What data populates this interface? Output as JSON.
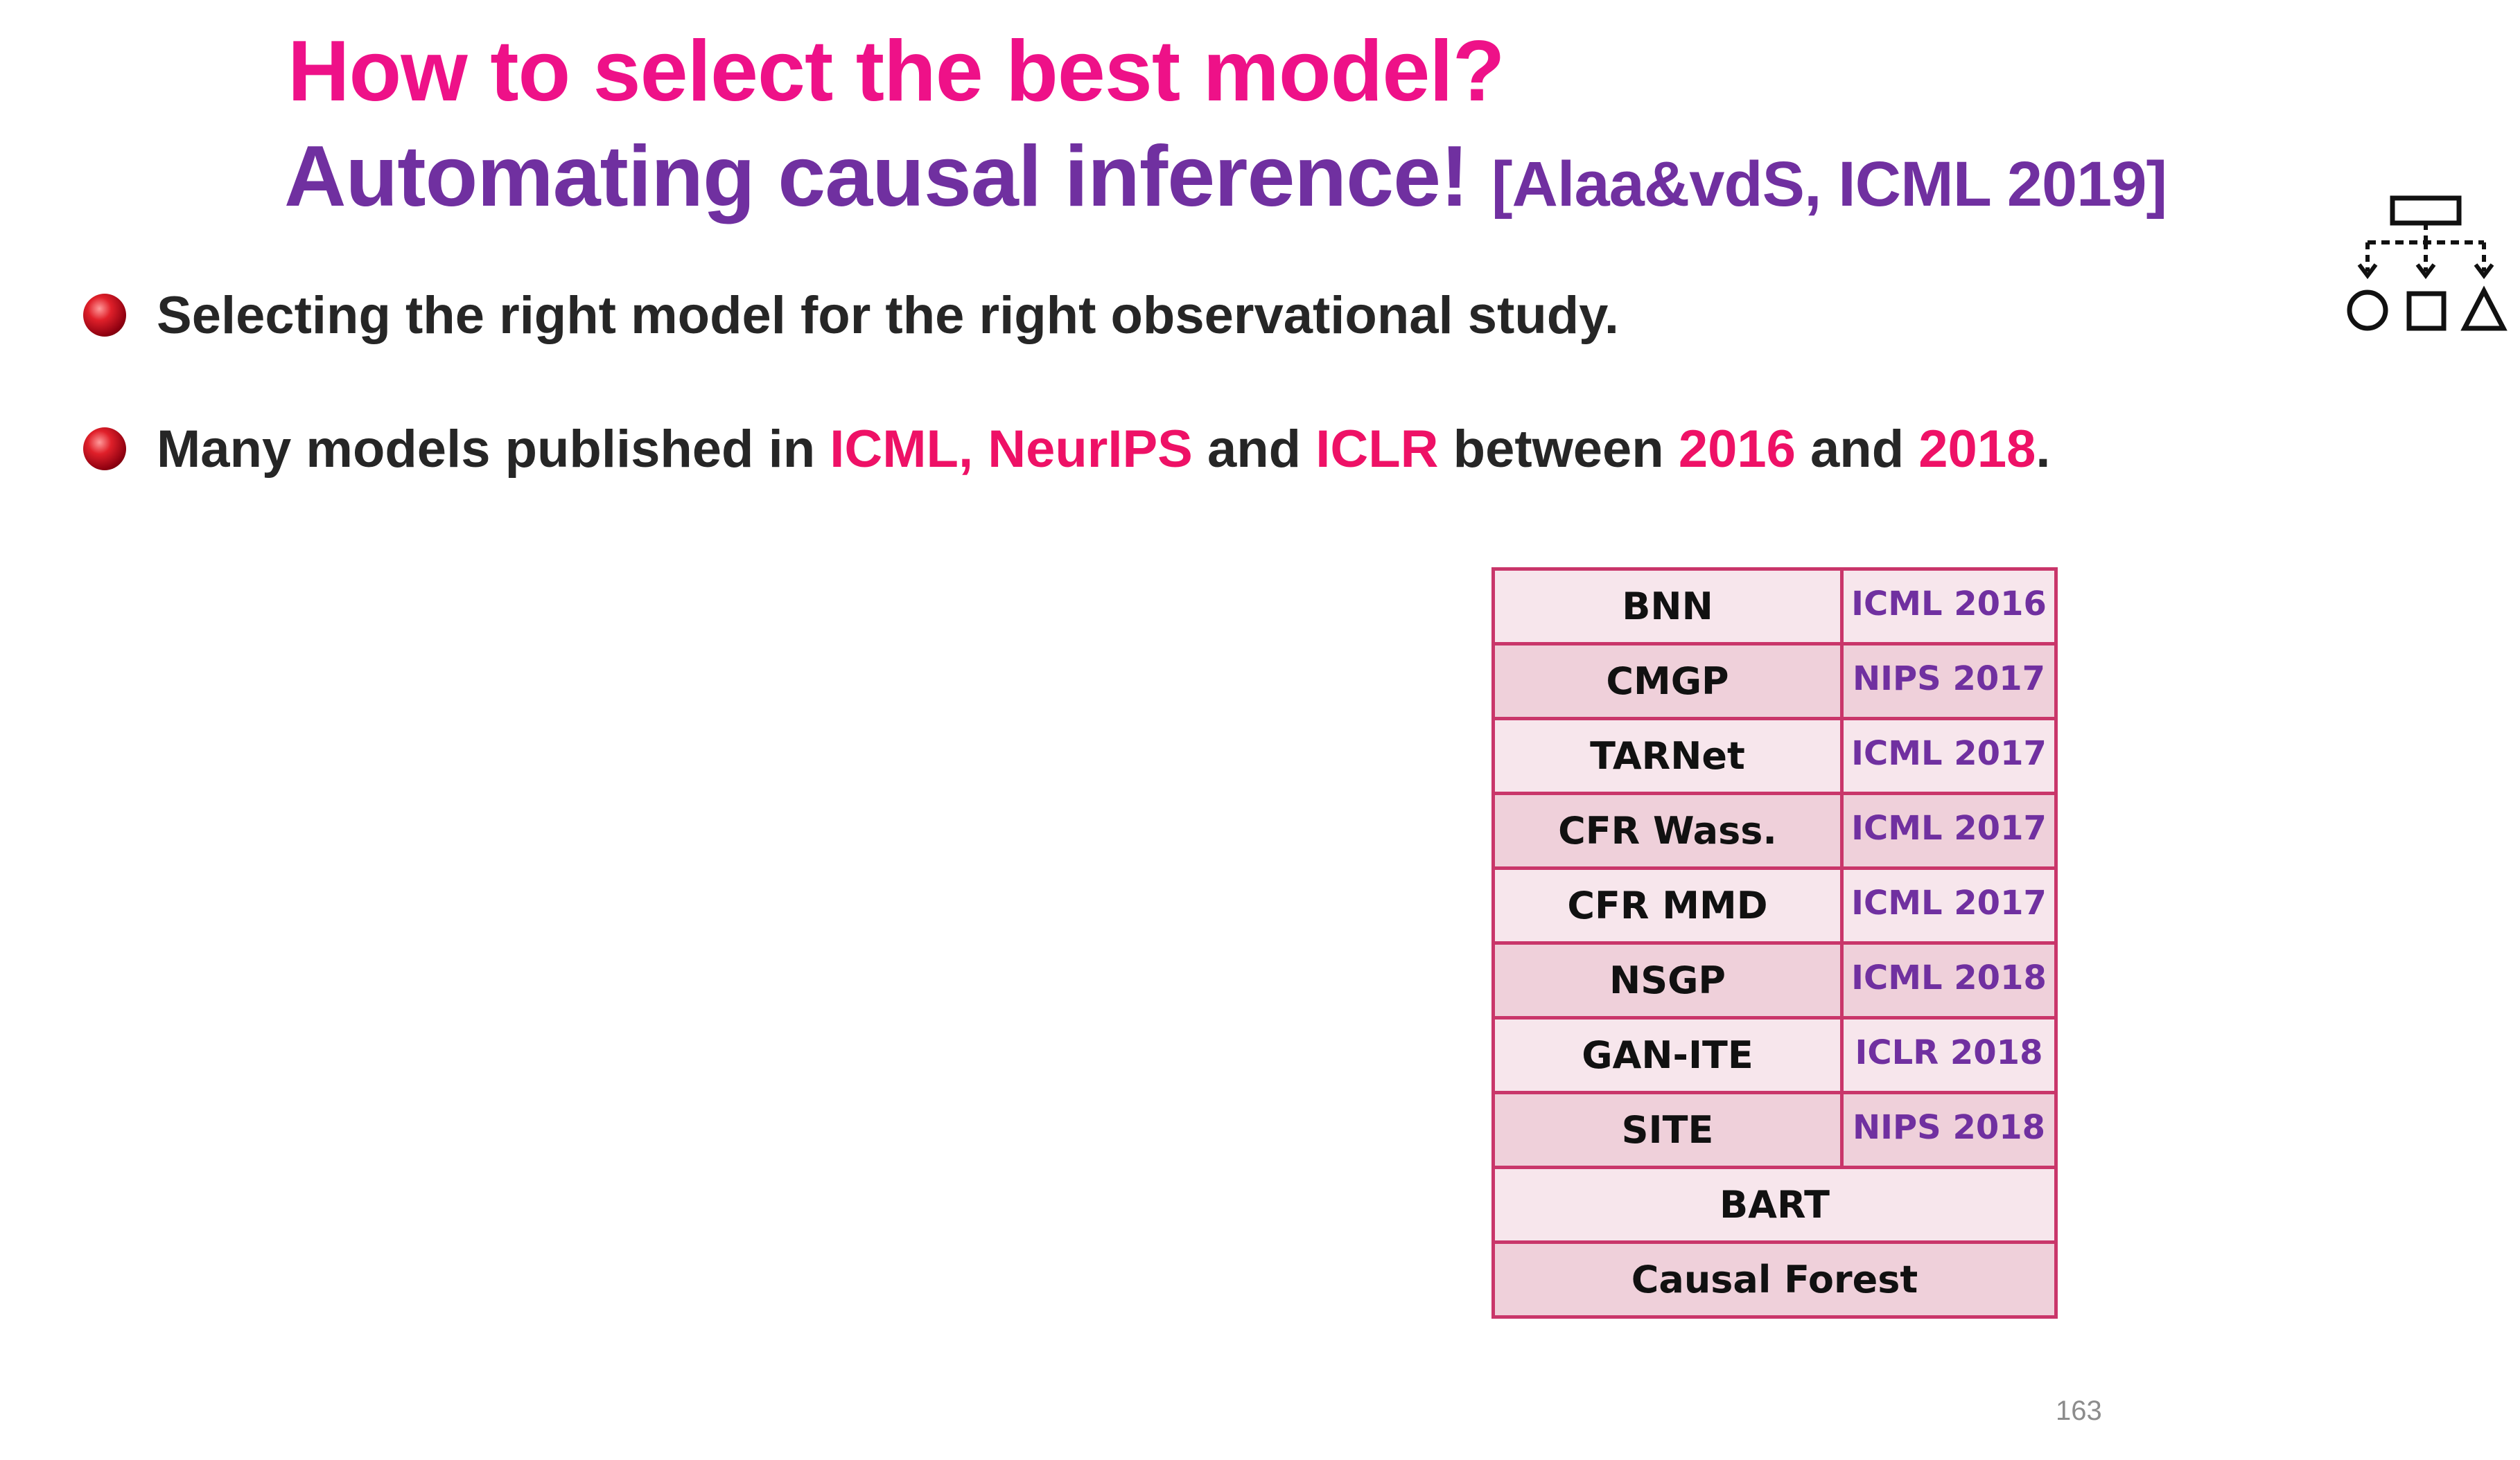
{
  "slide": {
    "title_line1": "How to select the best model?",
    "title_line2_main": "Automating causal inference!",
    "title_line2_citation": "[Alaa&vdS, ICML 2019]",
    "page_number": "163"
  },
  "colors": {
    "title_pink": "#ee1188",
    "title_purple": "#7030a0",
    "highlight": "#ee1166",
    "table_border": "#c9366a",
    "row_light": "#f7e6ec",
    "row_dark": "#efd0da"
  },
  "bullets": [
    {
      "text": "Selecting the right model for the right observational study."
    },
    {
      "segments": [
        {
          "text": "Many models published in ",
          "highlight": false
        },
        {
          "text": "ICML, NeurIPS",
          "highlight": true
        },
        {
          "text": " and ",
          "highlight": false
        },
        {
          "text": "ICLR",
          "highlight": true
        },
        {
          "text": " between ",
          "highlight": false
        },
        {
          "text": "2016",
          "highlight": true
        },
        {
          "text": " and ",
          "highlight": false
        },
        {
          "text": "2018",
          "highlight": true
        },
        {
          "text": ".",
          "highlight": false
        }
      ]
    }
  ],
  "models_table": {
    "rows": [
      {
        "model": "BNN",
        "venue": "ICML 2016"
      },
      {
        "model": "CMGP",
        "venue": "NIPS 2017"
      },
      {
        "model": "TARNet",
        "venue": "ICML 2017"
      },
      {
        "model": "CFR Wass.",
        "venue": "ICML 2017"
      },
      {
        "model": "CFR MMD",
        "venue": "ICML 2017"
      },
      {
        "model": "NSGP",
        "venue": "ICML 2018"
      },
      {
        "model": "GAN-ITE",
        "venue": "ICLR 2018"
      },
      {
        "model": "SITE",
        "venue": "NIPS 2018"
      }
    ],
    "wide_rows": [
      {
        "model": "BART"
      },
      {
        "model": "Causal Forest"
      }
    ]
  },
  "icons": {
    "hierarchy": "hierarchy-shapes-icon",
    "bullet": "red-sphere-bullet-icon"
  }
}
